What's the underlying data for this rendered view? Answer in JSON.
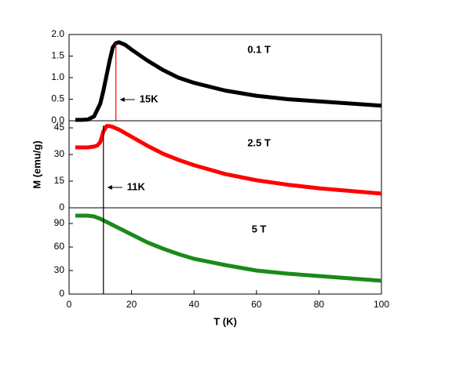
{
  "chart_data": [
    {
      "type": "line",
      "annotation": "0.1 T",
      "color": "#000000",
      "x": [
        2,
        4,
        6,
        8,
        10,
        11,
        12,
        13,
        14,
        15,
        16,
        18,
        20,
        25,
        30,
        35,
        40,
        50,
        60,
        70,
        80,
        90,
        100
      ],
      "values": [
        0.02,
        0.02,
        0.03,
        0.1,
        0.4,
        0.7,
        1.05,
        1.4,
        1.7,
        1.8,
        1.82,
        1.76,
        1.65,
        1.4,
        1.18,
        1.0,
        0.88,
        0.7,
        0.58,
        0.5,
        0.45,
        0.4,
        0.35
      ],
      "xlim": [
        0,
        100
      ],
      "ylim": [
        0,
        2.0
      ],
      "yticks": [
        {
          "value": 0,
          "label": "0.0"
        },
        0.5,
        {
          "value": 1,
          "label": "1.0"
        },
        1.5,
        {
          "value": 2,
          "label": "2.0"
        }
      ],
      "marker": {
        "x": 15,
        "label": "15K",
        "color": "#ff0000"
      }
    },
    {
      "type": "line",
      "annotation": "2.5 T",
      "color": "#ff0000",
      "ylabel": "M (emu/g)",
      "x": [
        2,
        4,
        6,
        8,
        9,
        10,
        11,
        12,
        13,
        14,
        16,
        18,
        20,
        25,
        30,
        35,
        40,
        50,
        60,
        70,
        80,
        90,
        100
      ],
      "values": [
        34,
        34,
        34,
        34.5,
        35,
        37,
        43,
        46,
        46,
        45.5,
        44,
        42,
        40,
        35,
        30.5,
        27,
        24,
        19,
        15.5,
        13,
        11,
        9.5,
        8
      ],
      "xlim": [
        0,
        100
      ],
      "ylim": [
        0,
        49
      ],
      "yticks": [
        0,
        15,
        30,
        45
      ],
      "marker": {
        "x": 11,
        "label": "11K",
        "color": "#000000"
      }
    },
    {
      "type": "line",
      "annotation": "5 T",
      "color": "#1a8a1a",
      "xlabel": "T (K)",
      "x": [
        2,
        4,
        6,
        8,
        10,
        12,
        14,
        16,
        18,
        20,
        25,
        30,
        35,
        40,
        50,
        60,
        70,
        80,
        90,
        100
      ],
      "values": [
        100,
        100,
        100,
        99,
        96,
        92,
        88,
        84,
        80,
        76,
        66,
        58,
        51,
        45,
        37,
        30,
        26,
        23,
        20,
        17
      ],
      "xlim": [
        0,
        100
      ],
      "ylim": [
        0,
        110
      ],
      "yticks": [
        0,
        30,
        60,
        90
      ],
      "xticks": [
        0,
        20,
        40,
        60,
        80,
        100
      ],
      "marker": {
        "x": 11,
        "color": "#000000"
      }
    }
  ]
}
